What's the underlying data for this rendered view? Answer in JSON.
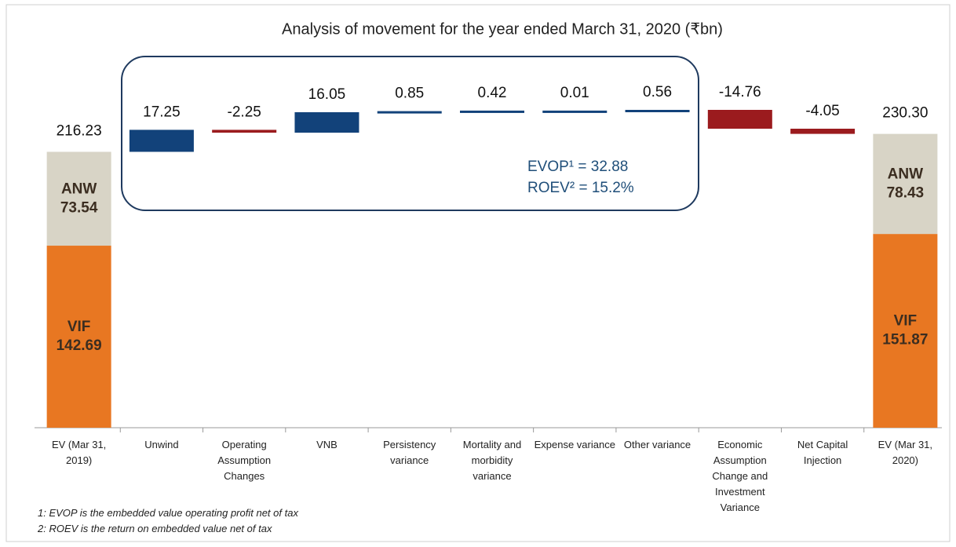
{
  "chart_data": {
    "type": "waterfall",
    "title": "Analysis of movement for the year ended March 31, 2020 (₹bn)",
    "categories": [
      "EV (Mar 31, 2019)",
      "Unwind",
      "Operating Assumption Changes",
      "VNB",
      "Persistency variance",
      "Mortality and morbidity variance",
      "Expense variance",
      "Other variance",
      "Economic Assumption Change and Investment Variance",
      "Net Capital Injection",
      "EV (Mar 31, 2020)"
    ],
    "values": [
      216.23,
      17.25,
      -2.25,
      16.05,
      0.85,
      0.42,
      0.01,
      0.56,
      -14.76,
      -4.05,
      230.3
    ],
    "value_labels": [
      "216.23",
      "17.25",
      "-2.25",
      "16.05",
      "0.85",
      "0.42",
      "0.01",
      "0.56",
      "-14.76",
      "-4.05",
      "230.30"
    ],
    "increase_color": "#12427a",
    "decrease_color": "#9b1b1e",
    "series": [
      {
        "name": "VIF",
        "color": "#e87722",
        "values": [
          142.69,
          null,
          null,
          null,
          null,
          null,
          null,
          null,
          null,
          null,
          151.87
        ]
      },
      {
        "name": "ANW",
        "color": "#d8d4c6",
        "values": [
          73.54,
          null,
          null,
          null,
          null,
          null,
          null,
          null,
          null,
          null,
          78.43
        ]
      }
    ],
    "annotations": [
      "EVOP¹ = 32.88",
      "ROEV² = 15.2%"
    ],
    "footnotes": [
      "1: EVOP is the embedded value operating profit net of tax",
      "2: ROEV is the return on embedded value net of tax"
    ]
  }
}
